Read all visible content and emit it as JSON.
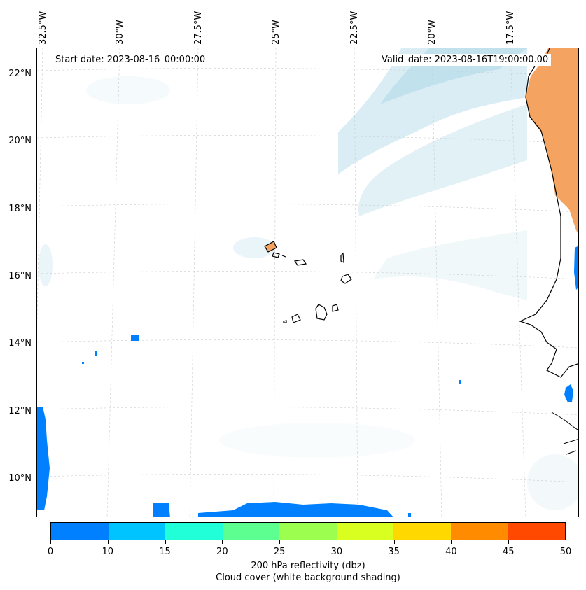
{
  "header": {
    "start_date": "Start date: 2023-08-16_00:00:00",
    "valid_date": "Valid_date: 2023-08-16T19:00:00.00"
  },
  "lon_labels": [
    "32.5°W",
    "30°W",
    "27.5°W",
    "25°W",
    "22.5°W",
    "20°W",
    "17.5°W"
  ],
  "lat_labels": [
    "22°N",
    "20°N",
    "18°N",
    "16°N",
    "14°N",
    "12°N",
    "10°N"
  ],
  "colorbar": {
    "ticks": [
      "0",
      "10",
      "15",
      "20",
      "25",
      "30",
      "35",
      "40",
      "45",
      "50"
    ],
    "colors": [
      "#0080ff",
      "#00c4ff",
      "#20ffd8",
      "#5cff90",
      "#9cff50",
      "#d8ff20",
      "#ffd800",
      "#ff8c00",
      "#ff4800"
    ],
    "label_line1": "200 hPa reflectivity (dbz)",
    "label_line2": "Cloud cover (white background shading)"
  },
  "colors": {
    "land_fill": "#f4a460",
    "cloud_fill": "#add8e6",
    "coast": "#000000",
    "echo": "#0080ff"
  }
}
